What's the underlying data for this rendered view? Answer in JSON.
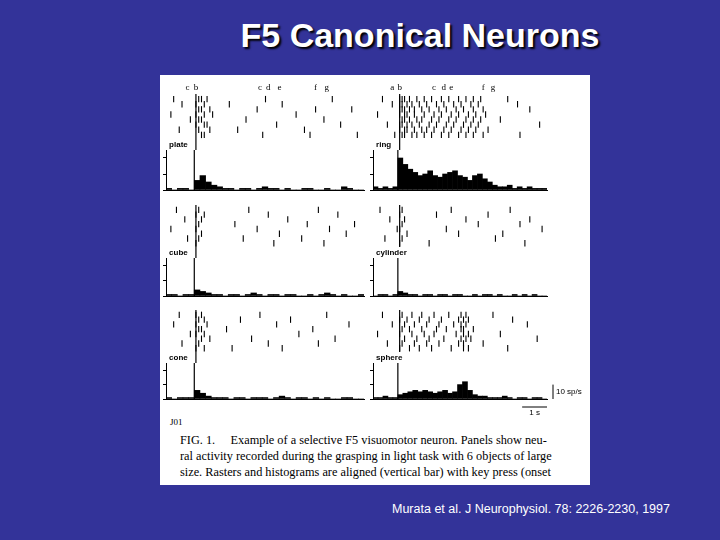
{
  "title": "F5 Canonical Neurons",
  "figure_label": "J01",
  "caption": [
    "FIG. 1.     Example of a selective F5 visuomotor neuron. Panels show neu-",
    "ral activity recorded during the grasping in light task with 6 objects of large",
    "size. Rasters and histograms are aligned (vertical bar) with key press (onset"
  ],
  "citation": "Murata et al. J Neurophysiol. 78: 2226-2230, 1997",
  "chart_data": [
    {
      "type": "bar",
      "title": "plate",
      "color": "#000000",
      "grid": false,
      "tick_labels": false,
      "xlim": [
        -1,
        6
      ],
      "ylim": [
        0,
        25
      ],
      "yticks": [
        0,
        10,
        20
      ],
      "alignment": 0,
      "events": [
        {
          "label": "c",
          "value": -0.3
        },
        {
          "label": "b",
          "value": 0
        },
        {
          "label": "c",
          "value": 2.3
        },
        {
          "label": "d",
          "value": 2.6
        },
        {
          "label": "e",
          "value": 3.0
        },
        {
          "label": "f",
          "value": 4.3
        },
        {
          "label": "g",
          "value": 4.7
        }
      ],
      "bins": [
        -1,
        -0.8,
        -0.6,
        -0.4,
        -0.2,
        0,
        0.2,
        0.4,
        0.6,
        0.8,
        1,
        1.2,
        1.4,
        1.6,
        1.8,
        2,
        2.2,
        2.4,
        2.6,
        2.8,
        3,
        3.2,
        3.4,
        3.6,
        3.8,
        4,
        4.2,
        4.4,
        4.6,
        4.8,
        5,
        5.2,
        5.4,
        5.6,
        5.8,
        6
      ],
      "values": [
        1,
        0,
        1,
        1,
        0,
        6,
        9,
        5,
        3,
        2,
        1,
        1,
        0,
        1,
        1,
        0,
        1,
        2,
        1,
        1,
        0,
        1,
        0,
        0,
        1,
        1,
        0,
        0,
        1,
        0,
        0,
        2,
        1,
        0,
        0
      ],
      "raster": [
        [
          -0.8,
          0.1,
          0.2,
          0.4,
          2.5,
          4.9
        ],
        [
          -0.5,
          0.0,
          0.3,
          1.2,
          3.1
        ],
        [
          0.1,
          0.2,
          0.5,
          2.2,
          4.3,
          5.6
        ],
        [
          -0.9,
          0.0,
          0.3,
          0.6,
          3.6
        ],
        [
          -0.2,
          0.1,
          0.2,
          1.8,
          4.6
        ],
        [
          0.0,
          0.3,
          0.4,
          2.9,
          5.2
        ],
        [
          -0.6,
          0.1,
          0.5,
          1.5,
          3.9
        ],
        [
          0.2,
          0.3,
          2.4,
          4.1,
          5.8
        ]
      ]
    },
    {
      "type": "bar",
      "title": "ring",
      "color": "#000000",
      "grid": false,
      "tick_labels": false,
      "xlim": [
        -1,
        6
      ],
      "ylim": [
        0,
        25
      ],
      "yticks": [
        0,
        10,
        20
      ],
      "alignment": 0,
      "events": [
        {
          "label": "a",
          "value": -0.3
        },
        {
          "label": "b",
          "value": 0
        },
        {
          "label": "c",
          "value": 1.4
        },
        {
          "label": "d",
          "value": 1.8
        },
        {
          "label": "e",
          "value": 2.1
        },
        {
          "label": "f",
          "value": 3.4
        },
        {
          "label": "g",
          "value": 3.8
        }
      ],
      "bins": [
        -1,
        -0.8,
        -0.6,
        -0.4,
        -0.2,
        0,
        0.2,
        0.4,
        0.6,
        0.8,
        1,
        1.2,
        1.4,
        1.6,
        1.8,
        2,
        2.2,
        2.4,
        2.6,
        2.8,
        3,
        3.2,
        3.4,
        3.6,
        3.8,
        4,
        4.2,
        4.4,
        4.6,
        4.8,
        5,
        5.2,
        5.4,
        5.6,
        5.8,
        6
      ],
      "values": [
        2,
        1,
        2,
        1,
        2,
        20,
        16,
        13,
        11,
        9,
        10,
        12,
        9,
        8,
        10,
        11,
        12,
        9,
        8,
        6,
        9,
        10,
        7,
        5,
        3,
        2,
        2,
        3,
        1,
        2,
        1,
        2,
        1,
        1,
        1
      ],
      "raster": [
        [
          -0.7,
          0.0,
          0.1,
          0.2,
          0.4,
          0.7,
          1.0,
          1.3,
          1.7,
          2.0,
          2.4,
          2.7,
          3.0,
          3.3,
          4.4
        ],
        [
          -0.3,
          0.0,
          0.1,
          0.3,
          0.5,
          0.8,
          1.1,
          1.5,
          1.8,
          2.2,
          2.5,
          2.9,
          3.2,
          4.8
        ],
        [
          0.0,
          0.1,
          0.2,
          0.4,
          0.6,
          0.9,
          1.2,
          1.6,
          1.9,
          2.3,
          2.6,
          3.0,
          3.4,
          5.3
        ],
        [
          -0.9,
          0.0,
          0.2,
          0.3,
          0.6,
          1.0,
          1.4,
          1.7,
          2.1,
          2.4,
          2.8,
          3.1,
          3.5
        ],
        [
          0.1,
          0.2,
          0.4,
          0.7,
          0.9,
          1.3,
          1.6,
          2.0,
          2.3,
          2.7,
          3.0,
          3.3,
          4.1
        ],
        [
          -0.5,
          0.0,
          0.1,
          0.3,
          0.5,
          0.8,
          1.2,
          1.5,
          1.9,
          2.2,
          2.6,
          2.9,
          3.2,
          5.7
        ],
        [
          0.0,
          0.2,
          0.3,
          0.6,
          0.9,
          1.1,
          1.4,
          1.8,
          2.1,
          2.5,
          2.8,
          3.1,
          3.6
        ],
        [
          -0.2,
          0.1,
          0.2,
          0.5,
          0.7,
          1.0,
          1.3,
          1.7,
          2.0,
          2.4,
          2.7,
          3.0,
          3.4,
          4.9
        ]
      ]
    },
    {
      "type": "bar",
      "title": "cube",
      "color": "#000000",
      "grid": false,
      "tick_labels": false,
      "xlim": [
        -1,
        6
      ],
      "ylim": [
        0,
        25
      ],
      "yticks": [
        0,
        10,
        20
      ],
      "alignment": 0,
      "bins": [
        -1,
        -0.8,
        -0.6,
        -0.4,
        -0.2,
        0,
        0.2,
        0.4,
        0.6,
        0.8,
        1,
        1.2,
        1.4,
        1.6,
        1.8,
        2,
        2.2,
        2.4,
        2.6,
        2.8,
        3,
        3.2,
        3.4,
        3.6,
        3.8,
        4,
        4.2,
        4.4,
        4.6,
        4.8,
        5,
        5.2,
        5.4,
        5.6,
        5.8,
        6
      ],
      "values": [
        1,
        1,
        0,
        1,
        1,
        4,
        3,
        2,
        1,
        1,
        0,
        1,
        1,
        0,
        1,
        2,
        1,
        0,
        1,
        1,
        0,
        1,
        1,
        0,
        0,
        1,
        0,
        1,
        2,
        1,
        0,
        1,
        0,
        0,
        1
      ],
      "raster": [
        [
          -0.7,
          0.1,
          1.9,
          4.4
        ],
        [
          0.0,
          0.3,
          2.6,
          5.1
        ],
        [
          -0.4,
          0.2,
          3.3
        ],
        [
          0.1,
          1.4,
          4.0,
          5.7
        ],
        [
          -0.9,
          0.0,
          2.2,
          4.8
        ],
        [
          0.2,
          3.0,
          5.4
        ],
        [
          -0.3,
          0.1,
          1.7,
          3.8
        ],
        [
          0.0,
          2.8,
          4.6
        ]
      ]
    },
    {
      "type": "bar",
      "title": "cylinder",
      "color": "#000000",
      "grid": false,
      "tick_labels": false,
      "xlim": [
        -1,
        6
      ],
      "ylim": [
        0,
        25
      ],
      "yticks": [
        0,
        10,
        20
      ],
      "alignment": 0,
      "bins": [
        -1,
        -0.8,
        -0.6,
        -0.4,
        -0.2,
        0,
        0.2,
        0.4,
        0.6,
        0.8,
        1,
        1.2,
        1.4,
        1.6,
        1.8,
        2,
        2.2,
        2.4,
        2.6,
        2.8,
        3,
        3.2,
        3.4,
        3.6,
        3.8,
        4,
        4.2,
        4.4,
        4.6,
        4.8,
        5,
        5.2,
        5.4,
        5.6,
        5.8,
        6
      ],
      "values": [
        0,
        1,
        1,
        0,
        1,
        3,
        2,
        1,
        1,
        0,
        1,
        1,
        0,
        1,
        1,
        0,
        1,
        1,
        0,
        0,
        1,
        0,
        1,
        1,
        0,
        1,
        0,
        0,
        1,
        0,
        1,
        0,
        1,
        0,
        0
      ],
      "raster": [
        [
          -0.8,
          0.1,
          2.1,
          4.5
        ],
        [
          0.0,
          1.5,
          3.6
        ],
        [
          -0.4,
          0.2,
          2.7,
          5.3
        ],
        [
          0.1,
          3.2,
          4.9
        ],
        [
          -0.1,
          0.0,
          1.9,
          5.8
        ],
        [
          0.3,
          2.4,
          4.2
        ],
        [
          -0.6,
          0.1,
          3.9
        ],
        [
          0.0,
          1.2,
          5.1
        ]
      ]
    },
    {
      "type": "bar",
      "title": "cone",
      "color": "#000000",
      "grid": false,
      "tick_labels": false,
      "xlim": [
        -1,
        6
      ],
      "ylim": [
        0,
        25
      ],
      "yticks": [
        0,
        10,
        20
      ],
      "alignment": 0,
      "bins": [
        -1,
        -0.8,
        -0.6,
        -0.4,
        -0.2,
        0,
        0.2,
        0.4,
        0.6,
        0.8,
        1,
        1.2,
        1.4,
        1.6,
        1.8,
        2,
        2.2,
        2.4,
        2.6,
        2.8,
        3,
        3.2,
        3.4,
        3.6,
        3.8,
        4,
        4.2,
        4.4,
        4.6,
        4.8,
        5,
        5.2,
        5.4,
        5.6,
        5.8,
        6
      ],
      "values": [
        1,
        0,
        1,
        1,
        1,
        6,
        4,
        2,
        1,
        1,
        1,
        0,
        1,
        1,
        0,
        1,
        1,
        1,
        0,
        1,
        2,
        1,
        0,
        1,
        1,
        0,
        1,
        0,
        1,
        0,
        0,
        1,
        1,
        0,
        0
      ],
      "raster": [
        [
          -0.6,
          0.0,
          0.2,
          2.3,
          4.7
        ],
        [
          0.1,
          0.3,
          1.6,
          3.4
        ],
        [
          -0.8,
          0.0,
          0.4,
          2.9,
          5.5
        ],
        [
          0.1,
          0.2,
          1.1,
          4.2
        ],
        [
          -0.2,
          0.0,
          0.3,
          3.7
        ],
        [
          0.2,
          0.5,
          2.0,
          5.0
        ],
        [
          -0.5,
          0.1,
          2.6,
          4.4
        ],
        [
          0.0,
          0.3,
          1.3,
          3.1
        ]
      ]
    },
    {
      "type": "bar",
      "title": "sphere",
      "color": "#000000",
      "grid": false,
      "tick_labels": false,
      "xlim": [
        -1,
        6
      ],
      "ylim": [
        0,
        25
      ],
      "yticks": [
        0,
        10,
        20
      ],
      "alignment": 0,
      "scale_bars": [
        {
          "axis": "y",
          "value": 10,
          "label": "10 sp/s"
        },
        {
          "axis": "x",
          "value": 1,
          "label": "1 s"
        }
      ],
      "bins": [
        -1,
        -0.8,
        -0.6,
        -0.4,
        -0.2,
        0,
        0.2,
        0.4,
        0.6,
        0.8,
        1,
        1.2,
        1.4,
        1.6,
        1.8,
        2,
        2.2,
        2.4,
        2.6,
        2.8,
        3,
        3.2,
        3.4,
        3.6,
        3.8,
        4,
        4.2,
        4.4,
        4.6,
        4.8,
        5,
        5.2,
        5.4,
        5.6,
        5.8,
        6
      ],
      "values": [
        1,
        1,
        2,
        1,
        1,
        3,
        4,
        5,
        6,
        5,
        6,
        5,
        4,
        5,
        6,
        4,
        5,
        10,
        12,
        6,
        3,
        2,
        2,
        1,
        1,
        1,
        2,
        1,
        0,
        1,
        1,
        0,
        1,
        1,
        0
      ],
      "raster": [
        [
          -0.7,
          0.1,
          0.5,
          0.9,
          1.4,
          2.0,
          2.5,
          2.7,
          3.8
        ],
        [
          0.0,
          0.3,
          0.8,
          1.2,
          1.7,
          2.4,
          2.6,
          2.8,
          4.6
        ],
        [
          -0.3,
          0.2,
          0.6,
          1.1,
          1.6,
          2.2,
          2.5,
          2.7,
          5.2
        ],
        [
          0.1,
          0.4,
          0.9,
          1.5,
          1.9,
          2.5,
          2.6,
          3.0
        ],
        [
          -0.9,
          0.0,
          0.5,
          1.0,
          1.4,
          2.3,
          2.6,
          2.8,
          4.1
        ],
        [
          0.2,
          0.7,
          1.2,
          1.8,
          2.5,
          2.7,
          2.9,
          5.6
        ],
        [
          -0.5,
          0.1,
          0.6,
          1.1,
          1.6,
          2.4,
          2.6,
          3.4
        ],
        [
          0.0,
          0.4,
          0.8,
          1.3,
          2.1,
          2.6,
          2.8,
          4.4
        ]
      ]
    }
  ]
}
